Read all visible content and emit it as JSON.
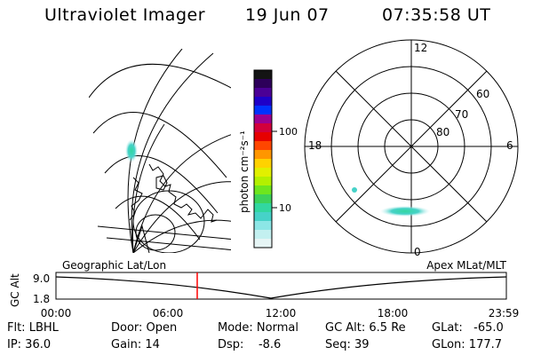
{
  "header": {
    "title": "Ultraviolet Imager",
    "date": "19 Jun 07",
    "time": "07:35:58 UT"
  },
  "colorbar": {
    "unit_label": "photon cm⁻²s⁻¹",
    "ticks": [
      "100",
      "10"
    ],
    "colors": [
      "#141414",
      "#2d005a",
      "#4b0096",
      "#1e00c8",
      "#0032ff",
      "#9b0091",
      "#d2003c",
      "#e60000",
      "#ff4600",
      "#ff9600",
      "#ffd200",
      "#e1f000",
      "#b4f000",
      "#6ee61e",
      "#3cd25a",
      "#32d7a0",
      "#46d2c8",
      "#8ce6e6",
      "#c3f0f0",
      "#e6f5f5"
    ]
  },
  "polar": {
    "mlt_labels": [
      "12",
      "18",
      "6",
      "0"
    ],
    "lat_labels": [
      "60",
      "70",
      "80"
    ]
  },
  "timeline": {
    "left_label": "Geographic Lat/Lon",
    "right_label": "Apex MLat/MLT",
    "axis_title": "GC Alt",
    "y_max": "9.0",
    "y_min": "1.8",
    "x_ticks": [
      "00:00",
      "06:00",
      "12:00",
      "18:00",
      "23:59"
    ],
    "cursor_color": "#ff0000"
  },
  "status": {
    "flt": "Flt: LBHL",
    "ip": "IP: 36.0",
    "door": "Door: Open",
    "gain": "Gain: 14",
    "mode": "Mode: Normal",
    "dsp": "Dsp:    -8.6",
    "gcalt": "GC Alt: 6.5 Re",
    "seq": "Seq: 39",
    "glat": "GLat:   -65.0",
    "glon": "GLon: 177.7"
  }
}
